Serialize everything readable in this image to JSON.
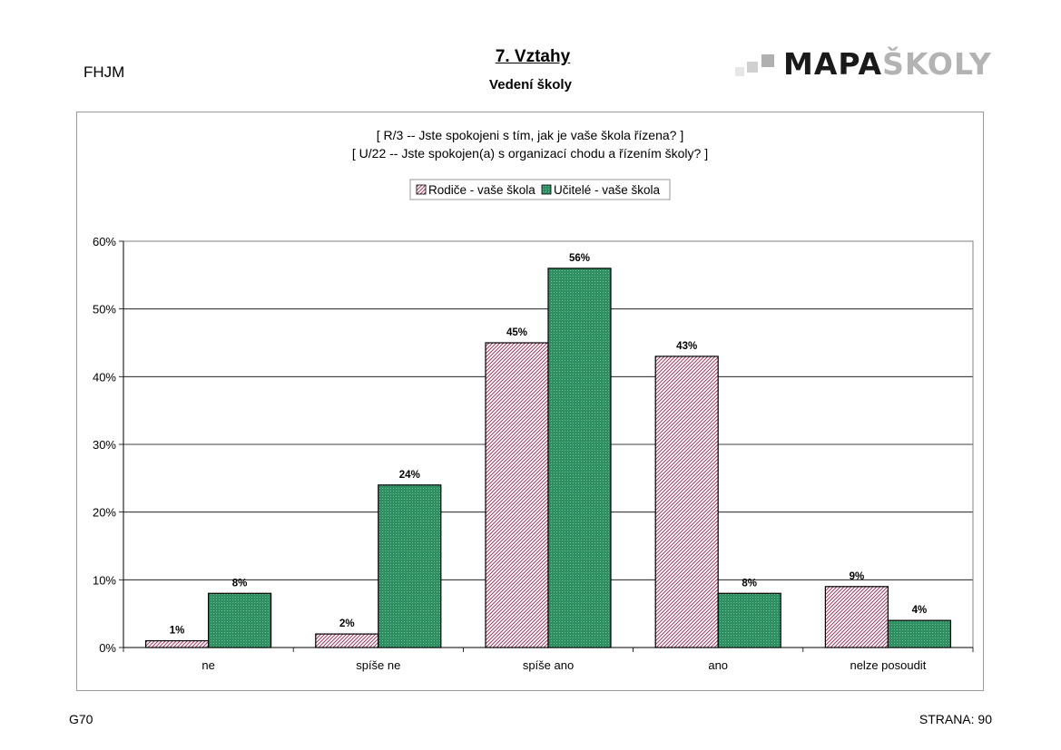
{
  "header": {
    "school_code": "FHJM",
    "title": "7. Vztahy",
    "subtitle": "Vedení školy",
    "logo": {
      "dark": "MAPA",
      "light": "ŠKOLY"
    }
  },
  "footer": {
    "left": "G70",
    "right": "STRANA: 90"
  },
  "chart_data": {
    "type": "bar",
    "title_lines": [
      "[ R/3 --  Jste spokojeni s tím, jak je vaše škola řízena? ]",
      "[ U/22 --   Jste spokojen(a) s organizací chodu a řízením školy? ]"
    ],
    "categories": [
      "ne",
      "spíše ne",
      "spíše ano",
      "ano",
      "nelze posoudit"
    ],
    "series": [
      {
        "name": "Rodiče - vaše škola",
        "values": [
          1,
          2,
          45,
          43,
          9
        ],
        "color": "#a0446a",
        "pattern": "diagonal-hatch"
      },
      {
        "name": "Učitelé - vaše škola",
        "values": [
          8,
          24,
          56,
          8,
          4
        ],
        "color": "#2f8f63",
        "pattern": "dotted"
      }
    ],
    "value_suffix": "%",
    "yticks": [
      "0%",
      "10%",
      "20%",
      "30%",
      "40%",
      "50%",
      "60%"
    ],
    "ylim": [
      0,
      60
    ],
    "grid": true,
    "legend_position": "top"
  }
}
